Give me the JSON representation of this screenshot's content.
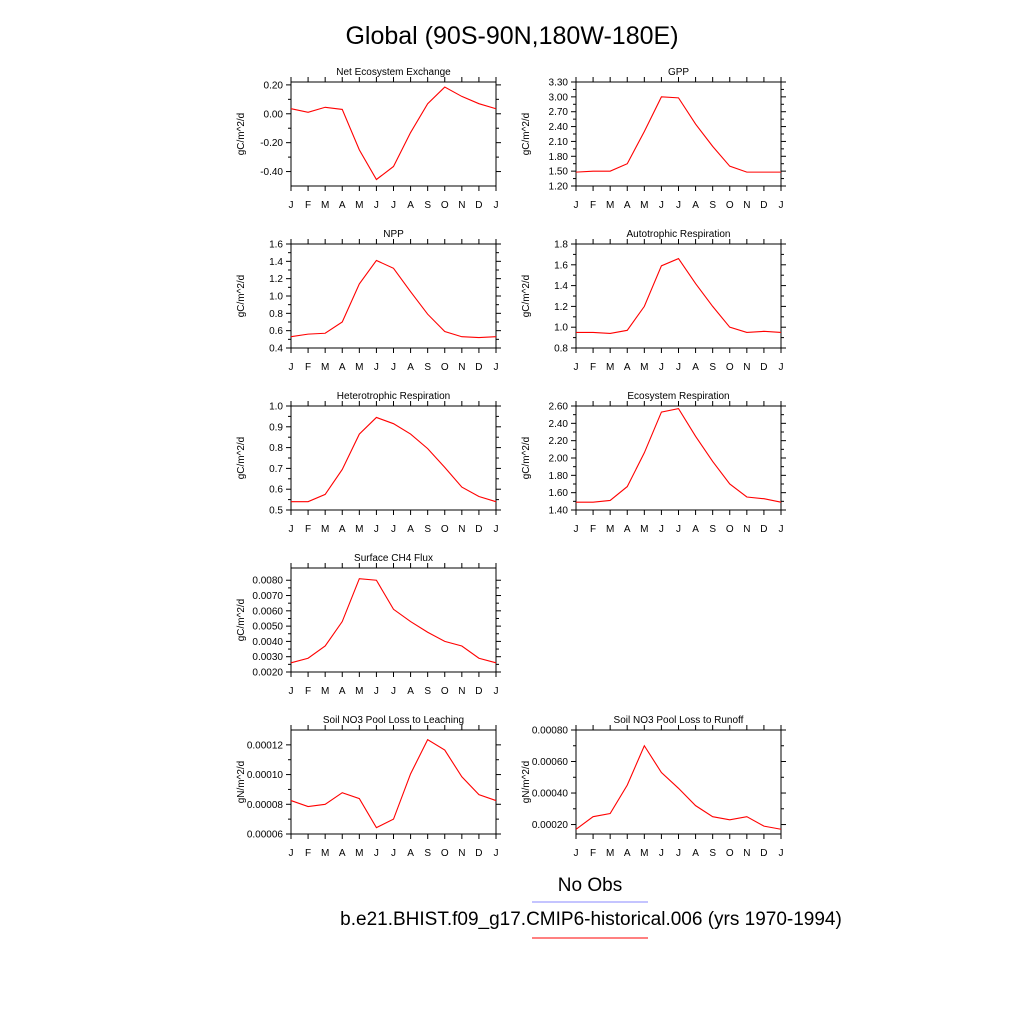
{
  "figure": {
    "title": "Global (90S-90N,180W-180E)",
    "legend": {
      "obs_label": "No Obs",
      "obs_color": "#8a8aff",
      "model_label": "b.e21.BHIST.f09_g17.CMIP6-historical.006 (yrs 1970-1994)",
      "model_color": "#ff0000"
    }
  },
  "month_labels": [
    "J",
    "F",
    "M",
    "A",
    "M",
    "J",
    "J",
    "A",
    "S",
    "O",
    "N",
    "D",
    "J"
  ],
  "chart_data": [
    {
      "type": "line",
      "title": "Net Ecosystem Exchange",
      "ylabel": "gC/m^2/d",
      "ylim": [
        -0.5,
        0.22
      ],
      "yticks": [
        -0.4,
        -0.2,
        0.0,
        0.2
      ],
      "ytick_labels": [
        "-0.40",
        "-0.20",
        "0.00",
        "0.20"
      ],
      "values": [
        0.035,
        0.01,
        0.045,
        0.03,
        -0.25,
        -0.455,
        -0.365,
        -0.13,
        0.07,
        0.185,
        0.12,
        0.07,
        0.035
      ],
      "line_color": "#ff0000"
    },
    {
      "type": "line",
      "title": "GPP",
      "ylabel": "gC/m^2/d",
      "ylim": [
        1.2,
        3.3
      ],
      "yticks": [
        1.2,
        1.5,
        1.8,
        2.1,
        2.4,
        2.7,
        3.0,
        3.3
      ],
      "ytick_labels": [
        "1.20",
        "1.50",
        "1.80",
        "2.10",
        "2.40",
        "2.70",
        "3.00",
        "3.30"
      ],
      "values": [
        1.48,
        1.5,
        1.5,
        1.65,
        2.3,
        3.0,
        2.98,
        2.45,
        2.0,
        1.6,
        1.48,
        1.48,
        1.48
      ],
      "line_color": "#ff0000"
    },
    {
      "type": "line",
      "title": "NPP",
      "ylabel": "gC/m^2/d",
      "ylim": [
        0.4,
        1.6
      ],
      "yticks": [
        0.4,
        0.6,
        0.8,
        1.0,
        1.2,
        1.4,
        1.6
      ],
      "ytick_labels": [
        "0.4",
        "0.6",
        "0.8",
        "1.0",
        "1.2",
        "1.4",
        "1.6"
      ],
      "values": [
        0.53,
        0.56,
        0.57,
        0.7,
        1.14,
        1.41,
        1.32,
        1.05,
        0.79,
        0.59,
        0.53,
        0.52,
        0.53
      ],
      "line_color": "#ff0000"
    },
    {
      "type": "line",
      "title": "Autotrophic Respiration",
      "ylabel": "gC/m^2/d",
      "ylim": [
        0.8,
        1.8
      ],
      "yticks": [
        0.8,
        1.0,
        1.2,
        1.4,
        1.6,
        1.8
      ],
      "ytick_labels": [
        "0.8",
        "1.0",
        "1.2",
        "1.4",
        "1.6",
        "1.8"
      ],
      "values": [
        0.95,
        0.95,
        0.94,
        0.97,
        1.2,
        1.59,
        1.66,
        1.42,
        1.2,
        1.0,
        0.95,
        0.96,
        0.95
      ],
      "line_color": "#ff0000"
    },
    {
      "type": "line",
      "title": "Heterotrophic Respiration",
      "ylabel": "gC/m^2/d",
      "ylim": [
        0.5,
        1.0
      ],
      "yticks": [
        0.5,
        0.6,
        0.7,
        0.8,
        0.9,
        1.0
      ],
      "ytick_labels": [
        "0.5",
        "0.6",
        "0.7",
        "0.8",
        "0.9",
        "1.0"
      ],
      "values": [
        0.54,
        0.54,
        0.575,
        0.695,
        0.865,
        0.945,
        0.915,
        0.865,
        0.795,
        0.705,
        0.61,
        0.565,
        0.54
      ],
      "line_color": "#ff0000"
    },
    {
      "type": "line",
      "title": "Ecosystem Respiration",
      "ylabel": "gC/m^2/d",
      "ylim": [
        1.4,
        2.6
      ],
      "yticks": [
        1.4,
        1.6,
        1.8,
        2.0,
        2.2,
        2.4,
        2.6
      ],
      "ytick_labels": [
        "1.40",
        "1.60",
        "1.80",
        "2.00",
        "2.20",
        "2.40",
        "2.60"
      ],
      "values": [
        1.49,
        1.49,
        1.51,
        1.67,
        2.06,
        2.53,
        2.57,
        2.25,
        1.96,
        1.7,
        1.55,
        1.53,
        1.49
      ],
      "line_color": "#ff0000"
    },
    {
      "type": "line",
      "title": "Surface CH4 Flux",
      "ylabel": "gC/m^2/d",
      "ylim": [
        0.002,
        0.0088
      ],
      "yticks": [
        0.002,
        0.003,
        0.004,
        0.005,
        0.006,
        0.007,
        0.008
      ],
      "ytick_labels": [
        "0.0020",
        "0.0030",
        "0.0040",
        "0.0050",
        "0.0060",
        "0.0070",
        "0.0080"
      ],
      "values": [
        0.0026,
        0.0029,
        0.0037,
        0.0053,
        0.0081,
        0.008,
        0.0061,
        0.0053,
        0.0046,
        0.004,
        0.0037,
        0.0029,
        0.0026
      ],
      "line_color": "#ff0000"
    },
    {
      "type": "line",
      "title": "Soil NO3 Pool Loss to Leaching",
      "ylabel": "gN/m^2/d",
      "ylim": [
        6e-05,
        0.00013
      ],
      "yticks": [
        6e-05,
        8e-05,
        0.0001,
        0.00012
      ],
      "ytick_labels": [
        "0.00006",
        "0.00008",
        "0.00010",
        "0.00012"
      ],
      "values": [
        8.25e-05,
        7.85e-05,
        8e-05,
        8.78e-05,
        8.38e-05,
        6.43e-05,
        7e-05,
        0.0001005,
        0.0001235,
        0.0001165,
        9.85e-05,
        8.65e-05,
        8.25e-05
      ],
      "line_color": "#ff0000"
    },
    {
      "type": "line",
      "title": "Soil NO3 Pool Loss to Runoff",
      "ylabel": "gN/m^2/d",
      "ylim": [
        0.00014,
        0.0008
      ],
      "yticks": [
        0.0002,
        0.0004,
        0.0006,
        0.0008
      ],
      "ytick_labels": [
        "0.00020",
        "0.00040",
        "0.00060",
        "0.00080"
      ],
      "values": [
        0.00017,
        0.00025,
        0.00027,
        0.00045,
        0.0007,
        0.00053,
        0.00043,
        0.00032,
        0.00025,
        0.00023,
        0.00025,
        0.00019,
        0.00017
      ],
      "line_color": "#ff0000"
    }
  ]
}
